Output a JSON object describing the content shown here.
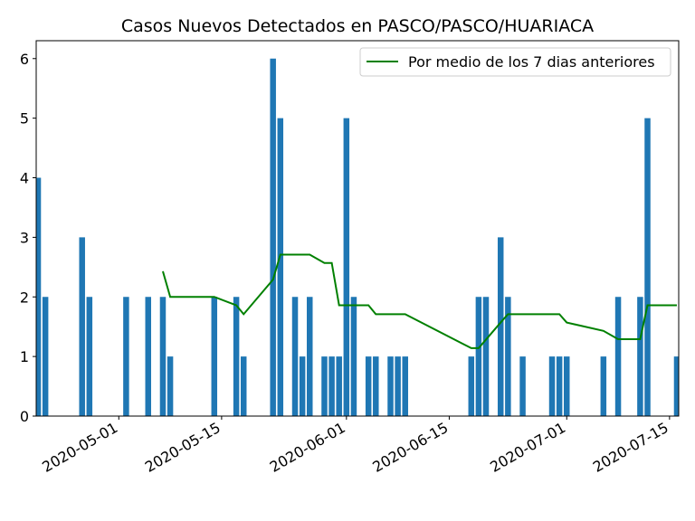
{
  "chart_data": {
    "type": "bar",
    "title": "Casos Nuevos Detectados en PASCO/PASCO/HUARIACA",
    "xlabel": "",
    "ylabel": "",
    "ylim": [
      0,
      6.3
    ],
    "yticks": [
      0,
      1,
      2,
      3,
      4,
      5,
      6
    ],
    "xlim": [
      "2020-04-20",
      "2020-07-16"
    ],
    "xticks": [
      "2020-05-01",
      "2020-05-15",
      "2020-06-01",
      "2020-06-15",
      "2020-07-01",
      "2020-07-15"
    ],
    "bars": {
      "name": "",
      "color": "#1f77b4",
      "points": [
        {
          "x": "2020-04-20",
          "y": 4
        },
        {
          "x": "2020-04-21",
          "y": 2
        },
        {
          "x": "2020-04-26",
          "y": 3
        },
        {
          "x": "2020-04-27",
          "y": 2
        },
        {
          "x": "2020-05-02",
          "y": 2
        },
        {
          "x": "2020-05-05",
          "y": 2
        },
        {
          "x": "2020-05-07",
          "y": 2
        },
        {
          "x": "2020-05-08",
          "y": 1
        },
        {
          "x": "2020-05-14",
          "y": 2
        },
        {
          "x": "2020-05-17",
          "y": 2
        },
        {
          "x": "2020-05-18",
          "y": 1
        },
        {
          "x": "2020-05-22",
          "y": 6
        },
        {
          "x": "2020-05-23",
          "y": 5
        },
        {
          "x": "2020-05-25",
          "y": 2
        },
        {
          "x": "2020-05-26",
          "y": 1
        },
        {
          "x": "2020-05-27",
          "y": 2
        },
        {
          "x": "2020-05-29",
          "y": 1
        },
        {
          "x": "2020-05-30",
          "y": 1
        },
        {
          "x": "2020-05-31",
          "y": 1
        },
        {
          "x": "2020-06-01",
          "y": 5
        },
        {
          "x": "2020-06-02",
          "y": 2
        },
        {
          "x": "2020-06-04",
          "y": 1
        },
        {
          "x": "2020-06-05",
          "y": 1
        },
        {
          "x": "2020-06-07",
          "y": 1
        },
        {
          "x": "2020-06-08",
          "y": 1
        },
        {
          "x": "2020-06-09",
          "y": 1
        },
        {
          "x": "2020-06-18",
          "y": 1
        },
        {
          "x": "2020-06-19",
          "y": 2
        },
        {
          "x": "2020-06-20",
          "y": 2
        },
        {
          "x": "2020-06-22",
          "y": 3
        },
        {
          "x": "2020-06-23",
          "y": 2
        },
        {
          "x": "2020-06-25",
          "y": 1
        },
        {
          "x": "2020-06-29",
          "y": 1
        },
        {
          "x": "2020-06-30",
          "y": 1
        },
        {
          "x": "2020-07-01",
          "y": 1
        },
        {
          "x": "2020-07-06",
          "y": 1
        },
        {
          "x": "2020-07-08",
          "y": 2
        },
        {
          "x": "2020-07-11",
          "y": 2
        },
        {
          "x": "2020-07-12",
          "y": 5
        },
        {
          "x": "2020-07-16",
          "y": 1
        }
      ]
    },
    "series": [
      {
        "name": "Por medio de los 7 dias anteriores",
        "color": "#008000",
        "type": "line",
        "points": [
          {
            "x": "2020-05-07",
            "y": 2.43
          },
          {
            "x": "2020-05-08",
            "y": 2.0
          },
          {
            "x": "2020-05-14",
            "y": 2.0
          },
          {
            "x": "2020-05-17",
            "y": 1.86
          },
          {
            "x": "2020-05-18",
            "y": 1.71
          },
          {
            "x": "2020-05-22",
            "y": 2.29
          },
          {
            "x": "2020-05-23",
            "y": 2.71
          },
          {
            "x": "2020-05-27",
            "y": 2.71
          },
          {
            "x": "2020-05-29",
            "y": 2.57
          },
          {
            "x": "2020-05-30",
            "y": 2.57
          },
          {
            "x": "2020-05-31",
            "y": 1.86
          },
          {
            "x": "2020-06-04",
            "y": 1.86
          },
          {
            "x": "2020-06-05",
            "y": 1.71
          },
          {
            "x": "2020-06-09",
            "y": 1.71
          },
          {
            "x": "2020-06-18",
            "y": 1.14
          },
          {
            "x": "2020-06-19",
            "y": 1.14
          },
          {
            "x": "2020-06-22",
            "y": 1.57
          },
          {
            "x": "2020-06-23",
            "y": 1.71
          },
          {
            "x": "2020-06-30",
            "y": 1.71
          },
          {
            "x": "2020-07-01",
            "y": 1.57
          },
          {
            "x": "2020-07-06",
            "y": 1.43
          },
          {
            "x": "2020-07-08",
            "y": 1.29
          },
          {
            "x": "2020-07-11",
            "y": 1.29
          },
          {
            "x": "2020-07-12",
            "y": 1.86
          },
          {
            "x": "2020-07-16",
            "y": 1.86
          }
        ]
      }
    ],
    "legend_position": "top-right",
    "grid": false
  }
}
